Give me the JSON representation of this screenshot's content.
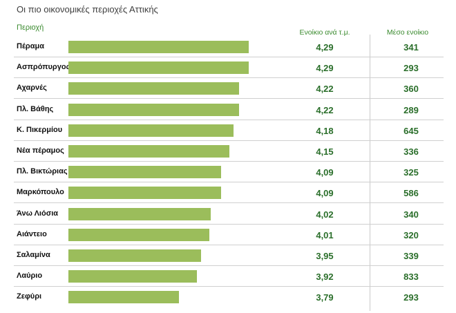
{
  "title": "Οι πιο οικονομικές περιοχές Αττικής",
  "headers": {
    "region": "Περιοχή",
    "price_per_sqm": "Ενοίκιο ανά τ.μ.",
    "avg_rent": "Μέσο ενοίκιο"
  },
  "colors": {
    "bar": "#9bbd5b",
    "header_green": "#3a8a2e",
    "value_green": "#2a6e2a"
  },
  "chart_data": {
    "type": "bar",
    "orientation": "horizontal",
    "title": "Οι πιο οικονομικές περιοχές Αττικής",
    "xlim": [
      0,
      4.29
    ],
    "categories": [
      "Πέραμα",
      "Ασπρόπυργος",
      "Αχαρνές",
      "Πλ. Βάθης",
      "Κ. Πικερμίου",
      "Νέα πέραμος",
      "Πλ. Βικτώριας",
      "Μαρκόπουλο",
      "Άνω Λιόσια",
      "Αιάντειο",
      "Σαλαμίνα",
      "Λαύριο",
      "Ζεφύρι"
    ],
    "values": [
      4.29,
      4.29,
      4.22,
      4.22,
      4.18,
      4.15,
      4.09,
      4.09,
      4.02,
      4.01,
      3.95,
      3.92,
      3.79
    ],
    "value_labels": [
      "4,29",
      "4,29",
      "4,22",
      "4,22",
      "4,18",
      "4,15",
      "4,09",
      "4,09",
      "4,02",
      "4,01",
      "3,95",
      "3,92",
      "3,79"
    ],
    "avg_rent": [
      "341",
      "293",
      "360",
      "289",
      "645",
      "336",
      "325",
      "586",
      "340",
      "320",
      "339",
      "833",
      "293"
    ]
  }
}
